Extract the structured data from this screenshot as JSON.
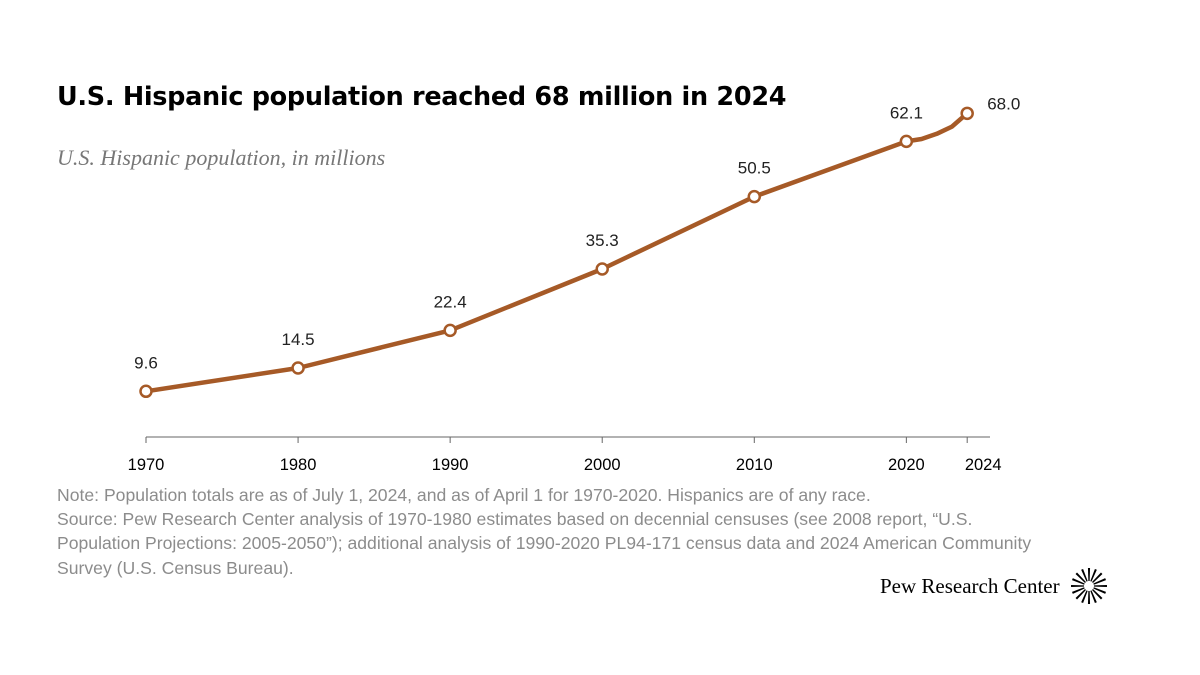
{
  "title": "U.S. Hispanic population reached 68 million in 2024",
  "subtitle": "U.S. Hispanic population, in millions",
  "chart_data": {
    "type": "line",
    "x": [
      1970,
      1980,
      1990,
      2000,
      2010,
      2020,
      2021,
      2022,
      2023,
      2024
    ],
    "y": [
      9.6,
      14.5,
      22.4,
      35.3,
      50.5,
      62.1,
      62.6,
      63.7,
      65.2,
      68.0
    ],
    "markers": [
      1970,
      1980,
      1990,
      2000,
      2010,
      2020,
      2024
    ],
    "labels": [
      {
        "x": 1970,
        "text": "9.6"
      },
      {
        "x": 1980,
        "text": "14.5"
      },
      {
        "x": 1990,
        "text": "22.4"
      },
      {
        "x": 2000,
        "text": "35.3"
      },
      {
        "x": 2010,
        "text": "50.5"
      },
      {
        "x": 2020,
        "text": "62.1"
      },
      {
        "x": 2024,
        "text": "68.0"
      }
    ],
    "xticks": [
      "1970",
      "1980",
      "1990",
      "2000",
      "2010",
      "2020",
      "2024"
    ],
    "xlim": [
      1970,
      2025.5
    ],
    "ylim": [
      0,
      75
    ],
    "line_color": "#a65a27",
    "grid": false
  },
  "notes": {
    "note": "Note: Population totals are as of July 1, 2024, and as of April 1 for 1970-2020. Hispanics are of any race.",
    "source": "Source: Pew Research Center analysis of 1970-1980 estimates based on decennial censuses (see 2008 report, “U.S. Population Projections: 2005-2050”); additional analysis of 1990-2020 PL94-171 census data and 2024 American Community Survey (U.S. Census Bureau)."
  },
  "logo": {
    "text": "Pew Research Center",
    "icon": "pew-sunburst-icon"
  }
}
